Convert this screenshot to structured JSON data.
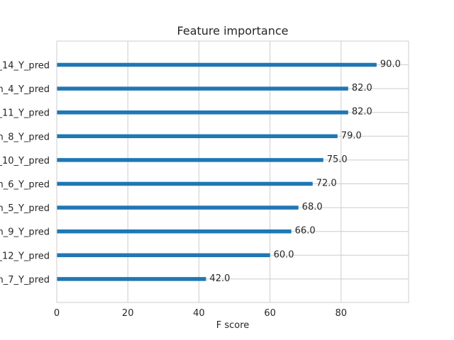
{
  "chart_data": {
    "type": "bar",
    "orientation": "horizontal",
    "title": "Feature importance",
    "xlabel": "F score",
    "ylabel": "",
    "xlim": [
      0,
      99
    ],
    "x_ticks": [
      0,
      20,
      40,
      60,
      80
    ],
    "grid": true,
    "bar_color": "#1f77b4",
    "categories": [
      "_14_Y_pred",
      "n_4_Y_pred",
      "_11_Y_pred",
      "n_8_Y_pred",
      "_10_Y_pred",
      "n_6_Y_pred",
      "n_5_Y_pred",
      "n_9_Y_pred",
      "_12_Y_pred",
      "n_7_Y_pred"
    ],
    "values": [
      90.0,
      82.0,
      82.0,
      79.0,
      75.0,
      72.0,
      68.0,
      66.0,
      60.0,
      42.0
    ],
    "value_labels": [
      "90.0",
      "82.0",
      "82.0",
      "79.0",
      "75.0",
      "72.0",
      "68.0",
      "66.0",
      "60.0",
      "42.0"
    ]
  }
}
